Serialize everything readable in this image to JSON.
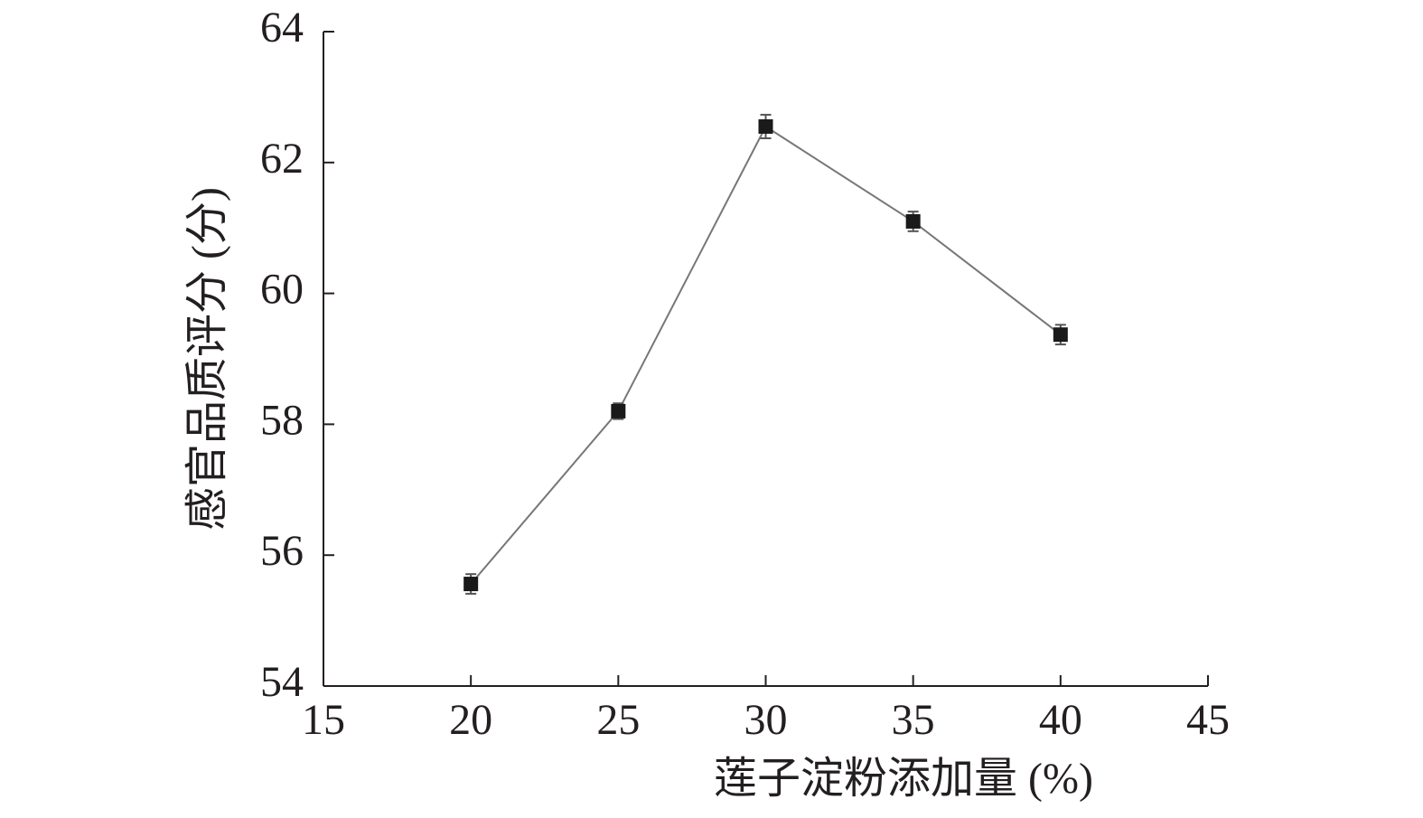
{
  "chart_data": {
    "type": "line",
    "xlabel": "莲子淀粉添加量 (%)",
    "ylabel": "感官品质评分 (分)",
    "x": [
      20,
      25,
      30,
      35,
      40
    ],
    "values": [
      55.56,
      58.2,
      62.55,
      61.1,
      59.37
    ],
    "errors": [
      0.15,
      0.12,
      0.18,
      0.15,
      0.15
    ],
    "color": "#1a1a1a",
    "line_color": "#777777",
    "xlim": [
      15,
      45
    ],
    "xticks": [
      15,
      20,
      25,
      30,
      35,
      40,
      45
    ],
    "ylim": [
      54,
      64
    ],
    "yticks": [
      54,
      56,
      58,
      60,
      62,
      64
    ]
  }
}
